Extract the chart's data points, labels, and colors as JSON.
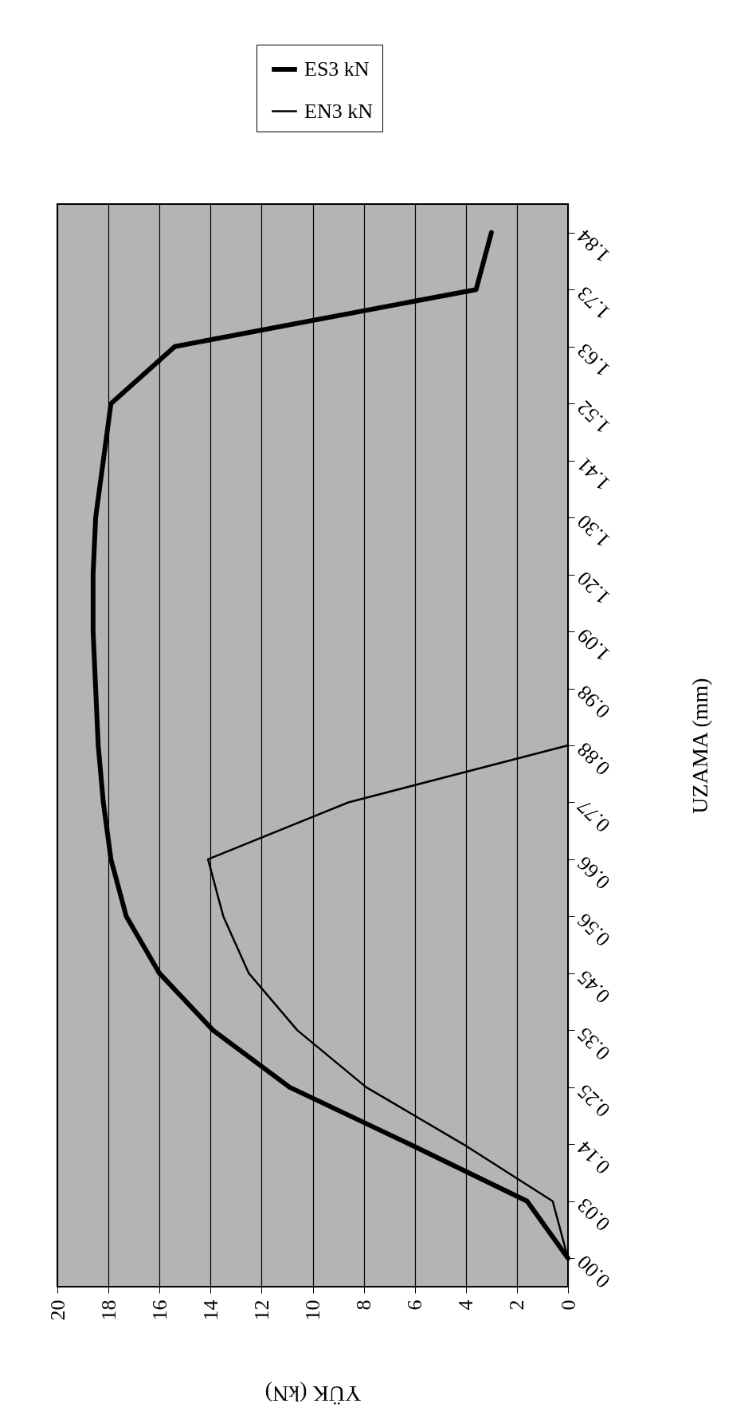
{
  "chart_data": {
    "type": "line",
    "orientation": "horizontal",
    "xlabel": "YÜK (kN)",
    "ylabel": "UZAMA (mm)",
    "categories": [
      "1.84",
      "1.73",
      "1.63",
      "1.52",
      "1.41",
      "1.30",
      "1.20",
      "1.09",
      "0.98",
      "0.88",
      "0.77",
      "0.66",
      "0.56",
      "0.45",
      "0.35",
      "0.25",
      "0.14",
      "0.03",
      "0.00"
    ],
    "series": [
      {
        "name": "ES3 kN",
        "color": "#000000",
        "values": [
          3.0,
          3.6,
          15.4,
          17.9,
          18.2,
          18.5,
          18.6,
          18.6,
          18.5,
          18.4,
          18.2,
          17.9,
          17.3,
          16.0,
          13.9,
          10.9,
          6.2,
          1.6,
          0
        ]
      },
      {
        "name": "EN3 kN",
        "color": "#000000",
        "values": [
          null,
          null,
          null,
          null,
          null,
          null,
          null,
          null,
          null,
          0,
          8.6,
          14.1,
          13.5,
          12.5,
          10.6,
          7.9,
          4.1,
          0.6,
          0
        ]
      }
    ],
    "xlim": [
      20,
      0
    ],
    "xticks": [
      20,
      18,
      16,
      14,
      12,
      10,
      8,
      6,
      4,
      2,
      0
    ],
    "grid": "x",
    "legend": "top"
  }
}
